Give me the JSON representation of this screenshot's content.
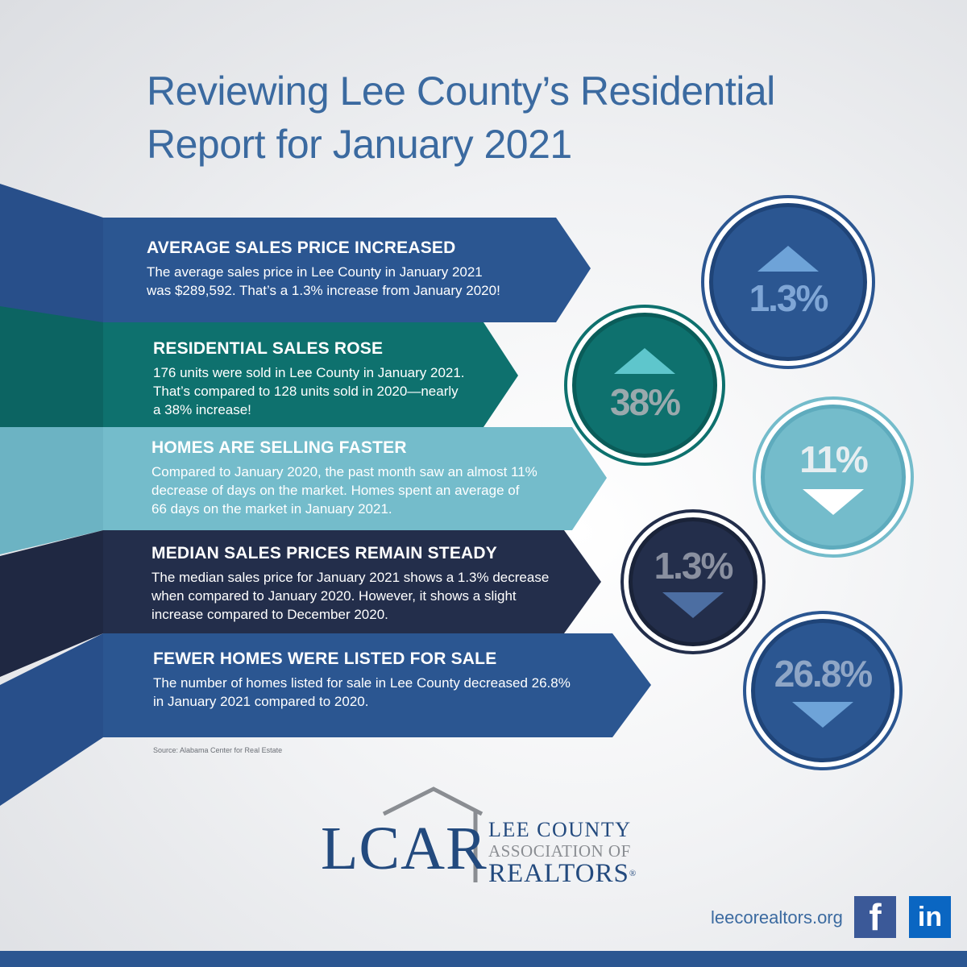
{
  "title": {
    "line1": "Reviewing Lee County’s Residential",
    "line2": "Report for January 2021"
  },
  "bands": [
    {
      "heading": "AVERAGE SALES PRICE INCREASED",
      "lines": [
        "The average sales price in Lee County in January 2021",
        "was $289,592. That’s a 1.3% increase from January 2020!"
      ]
    },
    {
      "heading": "RESIDENTIAL SALES ROSE",
      "lines": [
        "176 units were sold in Lee County in January 2021.",
        "That’s compared to 128 units sold in 2020—nearly",
        "a 38% increase!"
      ]
    },
    {
      "heading": "HOMES ARE SELLING FASTER",
      "lines": [
        "Compared to January 2020, the past month saw an almost 11%",
        "decrease of days on the market. Homes spent an average of",
        "66 days on the market in January 2021."
      ]
    },
    {
      "heading": "MEDIAN SALES PRICES REMAIN STEADY",
      "lines": [
        "The median sales price for January 2021 shows a 1.3% decrease",
        "when compared to January 2020. However, it shows a slight",
        "increase compared to December 2020."
      ]
    },
    {
      "heading": "FEWER HOMES WERE LISTED FOR SALE",
      "lines": [
        "The number of homes listed for sale in Lee County decreased 26.8%",
        "in January 2021 compared to 2020."
      ]
    }
  ],
  "source": "Source: Alabama Center for Real Estate",
  "circles": [
    {
      "value": "1.3%",
      "direction": "up-arrow-icon",
      "color": "#2b5691"
    },
    {
      "value": "38%",
      "direction": "up-arrow-icon",
      "color": "#0e716e"
    },
    {
      "value": "11%",
      "direction": "down-arrow-icon",
      "color": "#74bccb"
    },
    {
      "value": "1.3%",
      "direction": "down-arrow-icon",
      "color": "#232e4b"
    },
    {
      "value": "26.8%",
      "direction": "down-arrow-icon",
      "color": "#2b5691"
    }
  ],
  "logo": {
    "acronym": "LCAR",
    "line1": "LEE COUNTY",
    "line2": "ASSOCIATION OF",
    "line3": "REALTORS",
    "registered": "®"
  },
  "footer": {
    "website": "leecorealtors.org",
    "facebook_glyph": "f",
    "linkedin_glyph": "in"
  }
}
